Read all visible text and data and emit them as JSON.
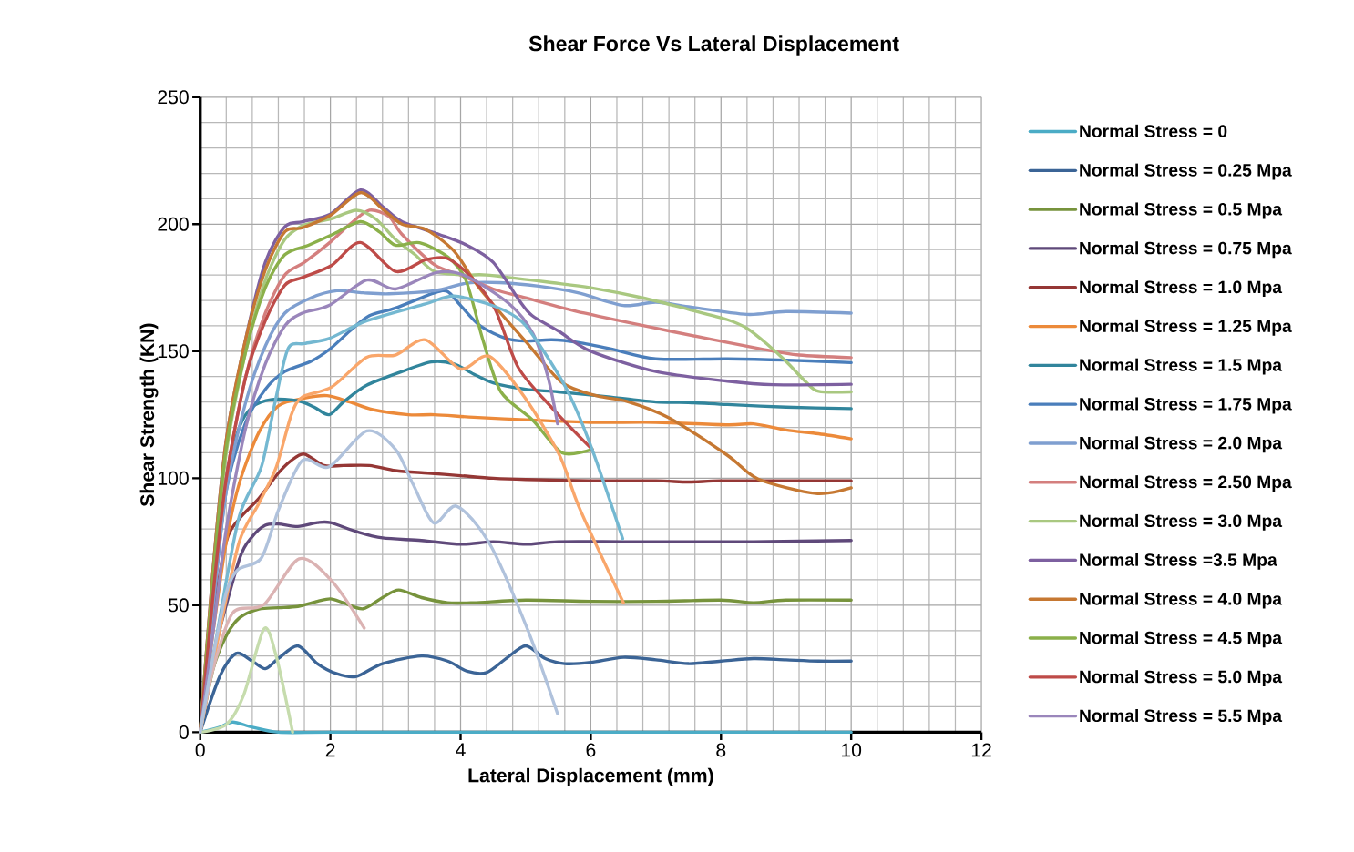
{
  "chart_data": {
    "type": "line",
    "title": "Shear Force Vs Lateral Displacement",
    "xlabel": "Lateral Displacement (mm)",
    "ylabel": "Shear Strength (KN)",
    "xlim": [
      0,
      12
    ],
    "ylim": [
      0,
      250
    ],
    "xticks": [
      0,
      2,
      4,
      6,
      8,
      10,
      12
    ],
    "yticks": [
      0,
      50,
      100,
      150,
      200,
      250
    ],
    "grid": true,
    "legend": "right",
    "series": [
      {
        "name": "Normal Stress = 0",
        "color": "#4bacc6",
        "x": [
          0,
          0.3,
          0.5,
          0.8,
          1.2,
          2,
          4,
          6,
          8,
          10
        ],
        "values": [
          0,
          2,
          4,
          2,
          0,
          0,
          0,
          0,
          0,
          0
        ]
      },
      {
        "name": "Normal Stress = 0.25 Mpa",
        "color": "#3b6496",
        "x": [
          0,
          0.3,
          0.55,
          0.8,
          1.0,
          1.2,
          1.5,
          1.8,
          2.1,
          2.4,
          2.8,
          3.4,
          3.8,
          4.1,
          4.4,
          4.7,
          5.0,
          5.3,
          5.6,
          6.0,
          6.5,
          7.0,
          7.5,
          8.0,
          8.5,
          9.0,
          9.5,
          10
        ],
        "values": [
          0,
          22,
          31,
          28,
          25,
          29,
          34,
          27,
          23,
          22,
          27,
          30,
          28,
          24,
          23.5,
          29,
          34,
          29,
          27,
          27.5,
          29.5,
          28.5,
          27,
          28,
          29,
          28.5,
          28,
          28
        ]
      },
      {
        "name": "Normal Stress = 0.5 Mpa",
        "color": "#77933c",
        "x": [
          0,
          0.2,
          0.4,
          0.6,
          0.9,
          1.2,
          1.5,
          1.8,
          2.0,
          2.2,
          2.5,
          2.8,
          3.05,
          3.4,
          3.8,
          4.2,
          5,
          6,
          7,
          8,
          8.5,
          9,
          10
        ],
        "values": [
          0,
          25,
          38,
          45,
          48.5,
          49,
          49.5,
          51.5,
          52.5,
          51,
          48.6,
          53,
          56,
          53,
          51,
          51,
          52,
          51.5,
          51.5,
          52,
          51,
          52,
          52
        ]
      },
      {
        "name": "Normal Stress = 0.75 Mpa",
        "color": "#5f497a",
        "x": [
          0,
          0.2,
          0.6,
          0.8,
          1.0,
          1.2,
          1.5,
          1.8,
          2.0,
          2.4,
          2.8,
          3.4,
          4.0,
          4.5,
          5.0,
          5.5,
          6.5,
          7.5,
          8.5,
          10
        ],
        "values": [
          0,
          30,
          68,
          77,
          81.5,
          82,
          81,
          82.5,
          82.5,
          79,
          76.5,
          75.5,
          74,
          75,
          74,
          75,
          75,
          75,
          75,
          75.5
        ]
      },
      {
        "name": "Normal Stress = 1.0 Mpa",
        "color": "#953735",
        "x": [
          0,
          0.2,
          0.4,
          0.6,
          0.9,
          1.2,
          1.4,
          1.6,
          1.9,
          2.2,
          2.6,
          3.0,
          3.5,
          4.0,
          4.5,
          5.0,
          6,
          7,
          7.5,
          8,
          9,
          10
        ],
        "values": [
          0,
          45,
          75,
          84,
          92,
          102,
          107,
          109.5,
          105,
          105,
          105,
          103,
          102,
          101,
          100,
          99.5,
          99,
          99,
          98.5,
          99,
          99,
          99
        ]
      },
      {
        "name": "Normal Stress = 1.25 Mpa",
        "color": "#ec8a3a",
        "x": [
          0,
          0.2,
          0.4,
          0.6,
          0.9,
          1.2,
          1.6,
          1.95,
          2.3,
          2.65,
          3.2,
          3.6,
          4.2,
          5,
          6,
          7,
          8.1,
          8.5,
          9,
          9.5,
          10
        ],
        "values": [
          0,
          40,
          75,
          98,
          118,
          128.5,
          131.5,
          132.5,
          130,
          127,
          125,
          125,
          124,
          123,
          122,
          122,
          121,
          121.4,
          119,
          117.5,
          115.5
        ]
      },
      {
        "name": "Normal Stress = 1.5 Mpa",
        "color": "#31859c",
        "x": [
          0,
          0.2,
          0.4,
          0.6,
          0.8,
          1.1,
          1.5,
          1.75,
          1.98,
          2.2,
          2.55,
          3.1,
          3.55,
          3.9,
          4.2,
          4.5,
          5,
          5.5,
          6.3,
          7,
          7.5,
          8.1,
          9,
          10
        ],
        "values": [
          0,
          55,
          100,
          120,
          128,
          131,
          130.5,
          128,
          125,
          130,
          136.5,
          142,
          145.8,
          145,
          141,
          137.5,
          135,
          134,
          132,
          130,
          129.8,
          129,
          128,
          127.4
        ]
      },
      {
        "name": "Normal Stress = 1.75 Mpa",
        "color": "#4a7ebb",
        "x": [
          0,
          0.2,
          0.4,
          0.7,
          1.0,
          1.3,
          1.7,
          2.0,
          2.3,
          2.6,
          3.0,
          3.6,
          3.8,
          4.0,
          4.3,
          4.7,
          5.0,
          5.4,
          5.8,
          6.3,
          7.0,
          8.1,
          9,
          10
        ],
        "values": [
          0,
          50,
          95,
          122,
          135,
          142,
          146,
          151,
          158,
          164,
          167,
          173,
          173.5,
          168,
          160,
          155,
          154,
          154.5,
          153.5,
          151,
          147,
          147,
          146.5,
          145.5
        ]
      },
      {
        "name": "Normal Stress = 2.0 Mpa",
        "color": "#7f9fd0",
        "x": [
          0,
          0.2,
          0.4,
          0.7,
          1.0,
          1.3,
          1.7,
          2.1,
          2.5,
          2.9,
          3.6,
          4.1,
          4.6,
          5.2,
          5.8,
          6.5,
          7.0,
          7.5,
          8.4,
          9.0,
          10
        ],
        "values": [
          0,
          50,
          95,
          130,
          152,
          165,
          171,
          173.8,
          173,
          172.6,
          173.8,
          176.8,
          177,
          175.6,
          173,
          168,
          169.3,
          167.5,
          164.5,
          165.6,
          165
        ]
      },
      {
        "name": "Normal Stress = 2.50 Mpa",
        "color": "#d47f7e",
        "x": [
          0,
          0.2,
          0.4,
          0.7,
          1.0,
          1.3,
          1.6,
          2.0,
          2.3,
          2.6,
          2.9,
          3.1,
          3.6,
          4.0,
          4.5,
          5.0,
          5.9,
          7.2,
          8.6,
          9.2,
          10
        ],
        "values": [
          0,
          55,
          100,
          140,
          165,
          180,
          185,
          193,
          200,
          205.5,
          203,
          196,
          184,
          180,
          174.5,
          171,
          165,
          158,
          151,
          148.5,
          147.5
        ]
      },
      {
        "name": "Normal Stress = 3.0 Mpa",
        "color": "#a9c880",
        "x": [
          0,
          0.2,
          0.4,
          0.7,
          1.0,
          1.3,
          1.6,
          2.0,
          2.4,
          2.7,
          3.0,
          3.3,
          3.6,
          4.1,
          4.4,
          5.4,
          6.0,
          6.8,
          7.5,
          8.1,
          8.4,
          8.7,
          9.0,
          9.3,
          9.5,
          10
        ],
        "values": [
          0,
          60,
          110,
          150,
          178,
          194,
          199.7,
          202,
          205.5,
          202,
          194,
          188,
          181.4,
          180,
          180,
          177,
          175,
          171,
          166.5,
          162.4,
          159,
          153,
          146,
          138,
          134.2,
          134
        ]
      },
      {
        "name": "Normal Stress =3.5 Mpa",
        "color": "#7d60a0",
        "x": [
          0,
          0.2,
          0.4,
          0.7,
          1.0,
          1.3,
          1.57,
          2.0,
          2.46,
          2.8,
          3.1,
          3.67,
          4.1,
          4.5,
          4.9,
          5.1,
          5.5,
          6.0,
          7.0,
          8.1,
          8.8,
          10
        ],
        "values": [
          0,
          65,
          115,
          155,
          185,
          199,
          201,
          204,
          213.5,
          207,
          201,
          196,
          191.7,
          185,
          170,
          164,
          158,
          150,
          142,
          138.2,
          136.8,
          137
        ]
      },
      {
        "name": "Normal Stress = 4.0 Mpa",
        "color": "#c67832",
        "x": [
          0,
          0.2,
          0.4,
          0.7,
          1.0,
          1.3,
          1.57,
          2.0,
          2.46,
          2.8,
          3.1,
          3.46,
          3.9,
          4.3,
          5.0,
          5.56,
          6.1,
          6.55,
          7.2,
          8.1,
          8.57,
          9.46,
          10
        ],
        "values": [
          0,
          65,
          115,
          155,
          182,
          197,
          198.6,
          203.5,
          212.4,
          206,
          200,
          198,
          189.4,
          174.5,
          153.8,
          137.6,
          132.4,
          130.3,
          123.8,
          109,
          99.7,
          94,
          96.2
        ]
      },
      {
        "name": "Normal Stress = 4.5 Mpa",
        "color": "#8bb04a",
        "x": [
          0,
          0.2,
          0.4,
          0.7,
          1.0,
          1.3,
          1.66,
          2.02,
          2.46,
          2.75,
          3.0,
          3.37,
          3.81,
          4.08,
          4.35,
          4.62,
          5.11,
          5.56,
          6.02
        ],
        "values": [
          0,
          62,
          112,
          150,
          175,
          188,
          191.7,
          195.8,
          201,
          197,
          191.7,
          192.7,
          187,
          178,
          153.8,
          134,
          122.8,
          110,
          111.4
        ]
      },
      {
        "name": "Normal Stress = 5.0 Mpa",
        "color": "#be4b48",
        "x": [
          0,
          0.2,
          0.4,
          0.7,
          1.0,
          1.3,
          1.57,
          2.02,
          2.46,
          3.0,
          3.46,
          3.8,
          4.17,
          4.53,
          4.89,
          5.43,
          6.02
        ],
        "values": [
          0,
          55,
          100,
          140,
          162,
          176,
          179,
          183.8,
          192.8,
          181.4,
          186,
          186.5,
          179,
          166.5,
          143.4,
          127,
          111.4
        ]
      },
      {
        "name": "Normal Stress = 5.5 Mpa",
        "color": "#9a86bb",
        "x": [
          0,
          0.2,
          0.4,
          0.7,
          1.0,
          1.3,
          1.57,
          1.98,
          2.56,
          3.0,
          3.63,
          4.08,
          4.75,
          5.11,
          5.34,
          5.49
        ],
        "values": [
          0,
          40,
          80,
          120,
          145,
          160,
          165,
          168,
          178,
          174.5,
          181,
          179.6,
          168.6,
          157,
          140,
          121.4
        ]
      },
      {
        "color": "#74b8d1",
        "x": [
          0,
          0.3,
          0.6,
          0.94,
          1.15,
          1.35,
          1.6,
          1.98,
          2.56,
          3.46,
          3.9,
          4.53,
          4.94,
          5.25,
          5.65,
          6.02,
          6.49
        ],
        "values": [
          0,
          45,
          85,
          104.5,
          130,
          151,
          153,
          155,
          162,
          168.6,
          171.7,
          167.6,
          161.7,
          151,
          134,
          111.4,
          76.2
        ]
      },
      {
        "color": "#f9a66a",
        "x": [
          0,
          0.3,
          0.6,
          0.9,
          1.17,
          1.4,
          1.57,
          2.02,
          2.56,
          3.0,
          3.46,
          4.0,
          4.44,
          4.98,
          5.52,
          5.83,
          6.5
        ],
        "values": [
          0,
          40,
          75,
          90,
          104.5,
          125,
          132,
          135.9,
          147.6,
          148.5,
          154.5,
          143,
          148,
          132,
          109,
          88,
          51
        ]
      },
      {
        "color": "#dbb3b3",
        "x": [
          0,
          0.2,
          0.5,
          0.98,
          1.52,
          2.02,
          2.52
        ],
        "values": [
          0,
          25,
          47,
          50.3,
          68.3,
          59.6,
          41
        ]
      },
      {
        "color": "#c6dcad",
        "x": [
          0,
          0.4,
          0.67,
          0.98,
          1.17,
          1.42
        ],
        "values": [
          0,
          3,
          14.8,
          40.7,
          29.7,
          0
        ]
      },
      {
        "color": "#b0c2dc",
        "x": [
          0,
          0.2,
          0.4,
          0.58,
          0.94,
          1.21,
          1.57,
          1.98,
          2.56,
          3.0,
          3.27,
          3.59,
          3.94,
          4.44,
          5.02,
          5.49
        ],
        "values": [
          0,
          30,
          55,
          64,
          68.6,
          88,
          107,
          104.5,
          118.6,
          111.4,
          97.6,
          82.4,
          89,
          74.5,
          41,
          7.2
        ]
      }
    ]
  }
}
